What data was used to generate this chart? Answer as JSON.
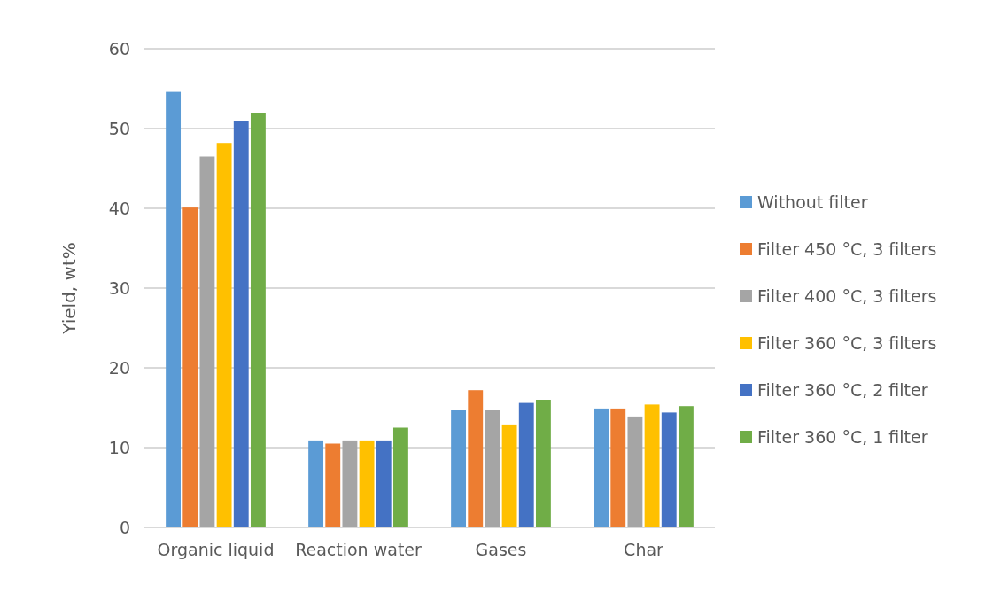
{
  "chart_data": {
    "type": "bar",
    "ylabel": "Yield, wt%",
    "categories": [
      "Organic liquid",
      "Reaction water",
      "Gases",
      "Char"
    ],
    "series": [
      {
        "name": "Without filter",
        "color": "#5b9bd5",
        "values": [
          54.6,
          10.9,
          14.7,
          14.9
        ]
      },
      {
        "name": "Filter 450 °C, 3 filters",
        "color": "#ed7d31",
        "values": [
          40.1,
          10.5,
          17.2,
          14.9
        ]
      },
      {
        "name": "Filter 400 °C, 3 filters",
        "color": "#a5a5a5",
        "values": [
          46.5,
          10.9,
          14.7,
          13.9
        ]
      },
      {
        "name": "Filter 360 °C, 3 filters",
        "color": "#ffc000",
        "values": [
          48.2,
          10.9,
          12.9,
          15.4
        ]
      },
      {
        "name": "Filter 360 °C, 2 filter",
        "color": "#4472c4",
        "values": [
          51.0,
          10.9,
          15.6,
          14.4
        ]
      },
      {
        "name": "Filter 360 °C, 1 filter",
        "color": "#70ad47",
        "values": [
          52.0,
          12.5,
          16.0,
          15.2
        ]
      }
    ],
    "ylim": [
      0,
      60
    ],
    "yticks": [
      0,
      10,
      20,
      30,
      40,
      50,
      60
    ],
    "grid": "y",
    "legend": "right"
  }
}
